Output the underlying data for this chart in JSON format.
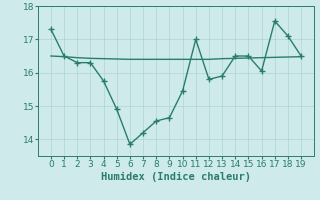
{
  "line1_x": [
    0,
    1,
    2,
    3,
    4,
    5,
    6,
    7,
    8,
    9,
    10,
    11,
    12,
    13,
    14,
    15,
    16,
    17,
    18,
    19
  ],
  "line1_y": [
    17.3,
    16.5,
    16.3,
    16.3,
    15.75,
    14.9,
    13.85,
    14.2,
    14.55,
    14.65,
    15.45,
    17.0,
    15.8,
    15.9,
    16.5,
    16.5,
    16.05,
    17.55,
    17.1,
    16.5
  ],
  "line2_x": [
    0,
    1,
    2,
    3,
    4,
    5,
    6,
    7,
    8,
    9,
    10,
    11,
    12,
    13,
    14,
    15,
    16,
    17,
    18,
    19
  ],
  "line2_y": [
    16.5,
    16.48,
    16.45,
    16.43,
    16.42,
    16.41,
    16.4,
    16.4,
    16.4,
    16.4,
    16.4,
    16.4,
    16.4,
    16.42,
    16.43,
    16.44,
    16.45,
    16.46,
    16.47,
    16.48
  ],
  "line_color": "#2a7d6e",
  "bg_color": "#ceeaea",
  "grid_color": "#aed4d4",
  "xlabel": "Humidex (Indice chaleur)",
  "ylim": [
    13.5,
    17.9
  ],
  "yticks": [
    14,
    15,
    16,
    17
  ],
  "ytick_top": 18,
  "xticks": [
    0,
    1,
    2,
    3,
    4,
    5,
    6,
    7,
    8,
    9,
    10,
    11,
    12,
    13,
    14,
    15,
    16,
    17,
    18,
    19
  ],
  "xlabel_fontsize": 7.5,
  "tick_fontsize": 6.5,
  "marker": "+",
  "markersize": 4,
  "linewidth": 1.0
}
